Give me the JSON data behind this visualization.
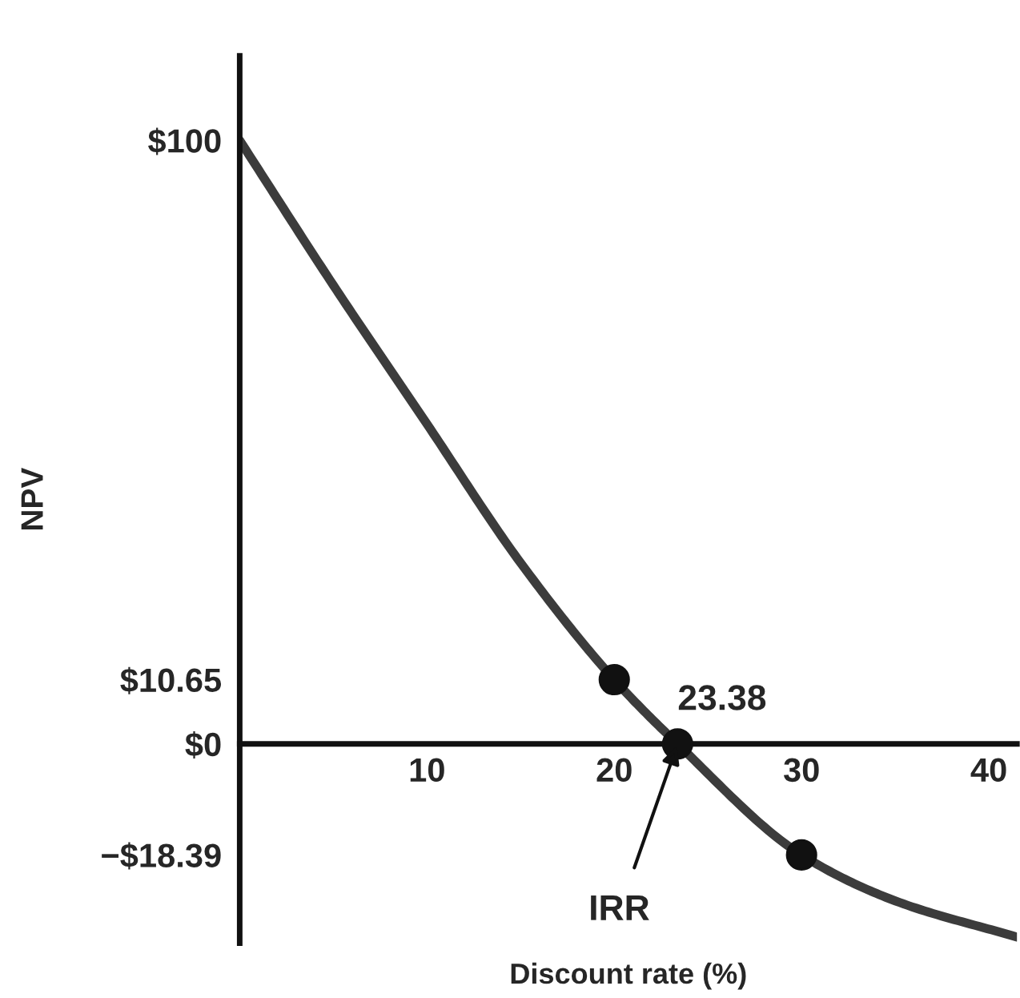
{
  "chart_data": {
    "type": "line",
    "xlabel": "Discount rate (%)",
    "ylabel": "NPV",
    "series": [
      {
        "color": "#3c3c3c",
        "marker": "none",
        "x": [
          0,
          5,
          10,
          15,
          20,
          23.38,
          30,
          35,
          41.5
        ],
        "values": [
          100,
          76,
          53,
          30,
          10.65,
          0,
          -18.39,
          -26,
          -32
        ]
      },
      {
        "type": "scatter",
        "color": "#111111",
        "marker": "circle",
        "x": [
          20,
          23.38,
          30
        ],
        "values": [
          10.65,
          0,
          -18.39
        ]
      }
    ],
    "xlim": [
      0,
      41.5
    ],
    "ylim": [
      -33,
      114
    ],
    "xticks": [
      10,
      20,
      30,
      40
    ],
    "yticks": [
      {
        "value": 100,
        "label": "$100"
      },
      {
        "value": 10.65,
        "label": "$10.65"
      },
      {
        "value": 0,
        "label": "$0"
      },
      {
        "value": -18.39,
        "label": "−$18.39"
      }
    ],
    "annotations": [
      {
        "text": "23.38",
        "x": 23.38,
        "y": 0
      },
      {
        "text": "IRR",
        "x": 23.38,
        "y": 0
      }
    ],
    "grid": false,
    "legend": false
  }
}
